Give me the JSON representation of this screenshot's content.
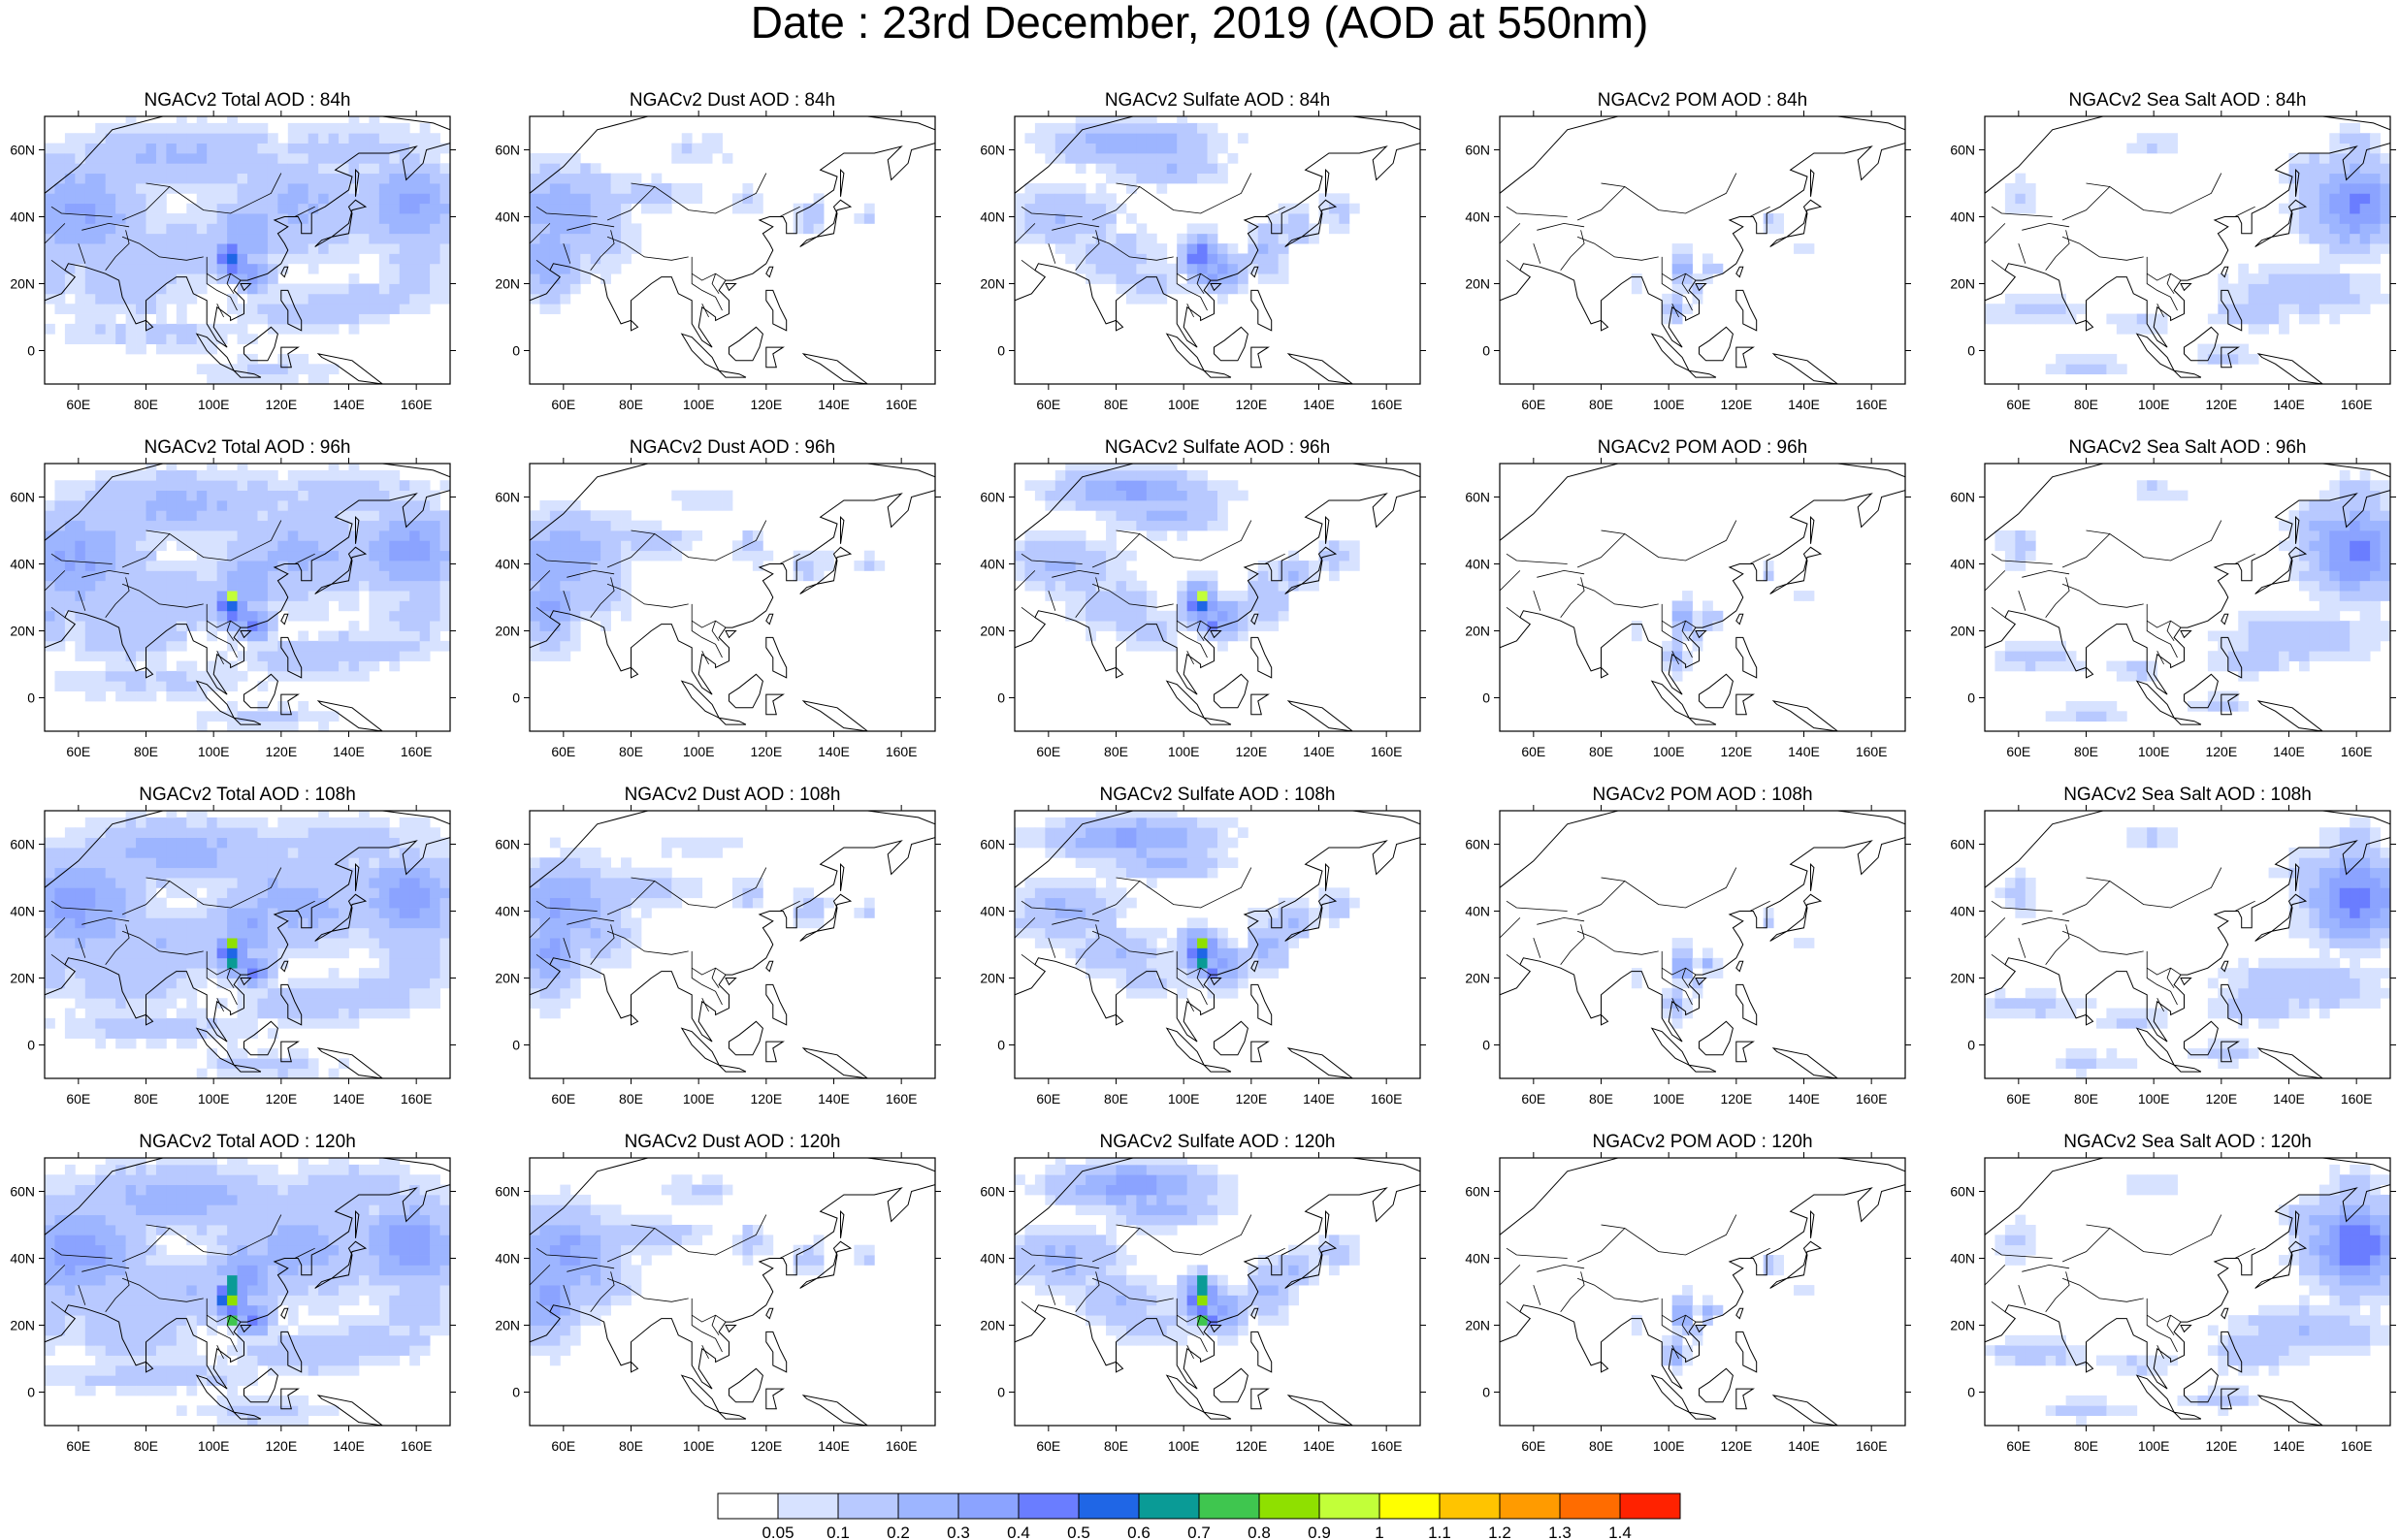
{
  "page_title": "Date : 23rd December, 2019 (AOD at 550nm)",
  "map": {
    "projection": "cylindrical-equidistant",
    "lon_range": [
      50,
      170
    ],
    "lat_range": [
      -10,
      70
    ],
    "x_ticks": [
      "60E",
      "80E",
      "100E",
      "120E",
      "140E",
      "160E"
    ],
    "x_tick_values": [
      60,
      80,
      100,
      120,
      140,
      160
    ],
    "y_ticks": [
      "60N",
      "40N",
      "20N",
      "0"
    ],
    "y_tick_values": [
      60,
      40,
      20,
      0
    ],
    "coastline_color": "#000000"
  },
  "panels": [
    {
      "title": "NGACv2 Total AOD : 84h",
      "species": "total",
      "hour": 84
    },
    {
      "title": "NGACv2 Dust AOD : 84h",
      "species": "dust",
      "hour": 84
    },
    {
      "title": "NGACv2 Sulfate AOD : 84h",
      "species": "sulfate",
      "hour": 84
    },
    {
      "title": "NGACv2 POM AOD : 84h",
      "species": "pom",
      "hour": 84
    },
    {
      "title": "NGACv2 Sea Salt AOD : 84h",
      "species": "seasalt",
      "hour": 84
    },
    {
      "title": "NGACv2 Total AOD : 96h",
      "species": "total",
      "hour": 96
    },
    {
      "title": "NGACv2 Dust AOD : 96h",
      "species": "dust",
      "hour": 96
    },
    {
      "title": "NGACv2 Sulfate AOD : 96h",
      "species": "sulfate",
      "hour": 96
    },
    {
      "title": "NGACv2 POM AOD : 96h",
      "species": "pom",
      "hour": 96
    },
    {
      "title": "NGACv2 Sea Salt AOD : 96h",
      "species": "seasalt",
      "hour": 96
    },
    {
      "title": "NGACv2 Total AOD : 108h",
      "species": "total",
      "hour": 108
    },
    {
      "title": "NGACv2 Dust AOD : 108h",
      "species": "dust",
      "hour": 108
    },
    {
      "title": "NGACv2 Sulfate AOD : 108h",
      "species": "sulfate",
      "hour": 108
    },
    {
      "title": "NGACv2 POM AOD : 108h",
      "species": "pom",
      "hour": 108
    },
    {
      "title": "NGACv2 Sea Salt AOD : 108h",
      "species": "seasalt",
      "hour": 108
    },
    {
      "title": "NGACv2 Total AOD : 120h",
      "species": "total",
      "hour": 120
    },
    {
      "title": "NGACv2 Dust AOD : 120h",
      "species": "dust",
      "hour": 120
    },
    {
      "title": "NGACv2 Sulfate AOD : 120h",
      "species": "sulfate",
      "hour": 120
    },
    {
      "title": "NGACv2 POM AOD : 120h",
      "species": "pom",
      "hour": 120
    },
    {
      "title": "NGACv2 Sea Salt  AOD : 120h",
      "species": "seasalt",
      "hour": 120
    }
  ],
  "colorbar": {
    "labels": [
      "0.05",
      "0.1",
      "0.2",
      "0.3",
      "0.4",
      "0.5",
      "0.6",
      "0.7",
      "0.8",
      "0.9",
      "1",
      "1.1",
      "1.2",
      "1.3",
      "1.4"
    ],
    "colors": [
      "#ffffff",
      "#d7e2ff",
      "#b8c9ff",
      "#9db5ff",
      "#8ba3ff",
      "#6a7dff",
      "#1f66e6",
      "#0a9b96",
      "#3fc64f",
      "#8fe000",
      "#c2ff39",
      "#ffff00",
      "#ffc400",
      "#ff9b00",
      "#ff6c00",
      "#ff2200"
    ]
  }
}
